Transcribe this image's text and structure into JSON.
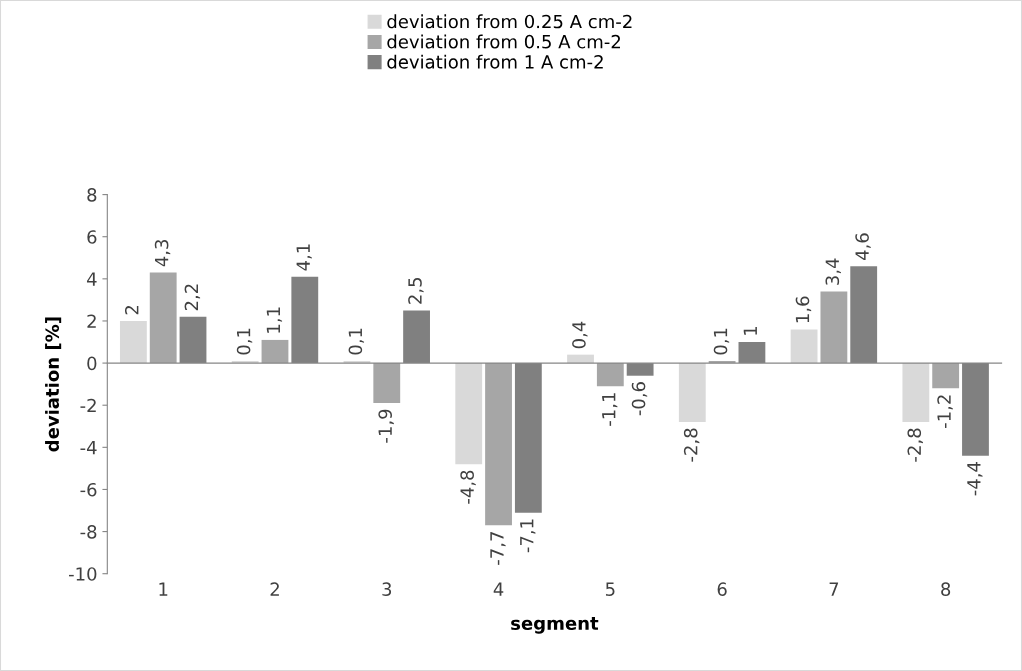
{
  "chart_data": {
    "type": "bar",
    "xlabel": "segment",
    "ylabel": "deviation [%]",
    "categories": [
      "1",
      "2",
      "3",
      "4",
      "5",
      "6",
      "7",
      "8"
    ],
    "series": [
      {
        "name": "deviation from 0.25 A cm-2",
        "color": "#d9d9d9",
        "values": [
          2,
          0.1,
          0.1,
          -4.8,
          0.4,
          -2.8,
          1.6,
          -2.8
        ],
        "value_labels": [
          "2",
          "0,1",
          "0,1",
          "-4,8",
          "0,4",
          "-2,8",
          "1,6",
          "-2,8"
        ]
      },
      {
        "name": "deviation from 0.5 A cm-2",
        "color": "#a6a6a6",
        "values": [
          4.3,
          1.1,
          -1.9,
          -7.7,
          -1.1,
          0.1,
          3.4,
          -1.2
        ],
        "value_labels": [
          "4,3",
          "1,1",
          "-1,9",
          "-7,7",
          "-1,1",
          "0,1",
          "3,4",
          "-1,2"
        ]
      },
      {
        "name": "deviation from 1 A cm-2",
        "color": "#808080",
        "values": [
          2.2,
          4.1,
          2.5,
          -7.1,
          -0.6,
          1,
          4.6,
          -4.4
        ],
        "value_labels": [
          "2,2",
          "4,1",
          "2,5",
          "-7,1",
          "-0,6",
          "1",
          "4,6",
          "-4,4"
        ]
      }
    ],
    "ylim": [
      -10,
      8
    ],
    "yticks": [
      -10,
      -8,
      -6,
      -4,
      -2,
      0,
      2,
      4,
      6,
      8
    ],
    "legend": "top"
  }
}
